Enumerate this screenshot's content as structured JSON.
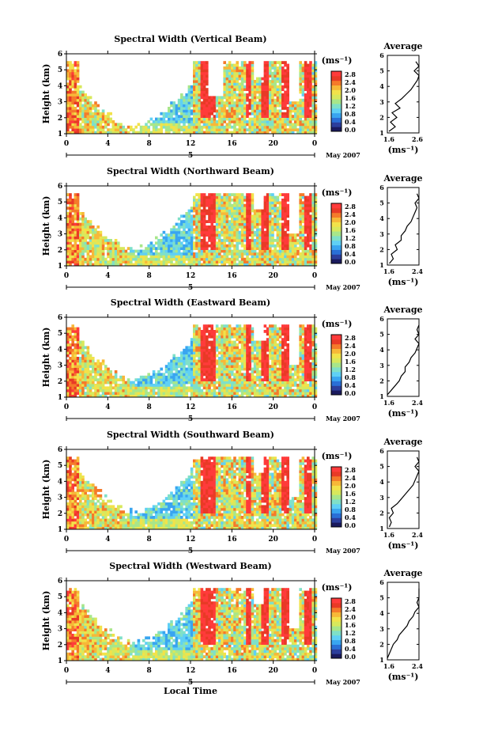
{
  "colorbar": {
    "unit_label": "(ms⁻¹)",
    "colors": [
      "#1a1a5e",
      "#2c3e9c",
      "#2a6fd6",
      "#39a5f0",
      "#5fd0f5",
      "#7fe0c8",
      "#a8e68a",
      "#d8e85c",
      "#f2e24a",
      "#f7b838",
      "#f57a2a",
      "#e83a26",
      "#ff3b3b"
    ]
  },
  "xlabel": "Local Time",
  "date_label": "May 2007",
  "date_tick": "5",
  "panels": [
    {
      "title": "Spectral Width (Vertical Beam)",
      "cbar_ticks": [
        "2.8",
        "2.4",
        "2.0",
        "1.6",
        "1.2",
        "0.8",
        "0.4",
        "0.0"
      ]
    },
    {
      "title": "Spectral Width (Northward Beam)",
      "cbar_ticks": [
        "2.8",
        "2.4",
        "2.0",
        "1.6",
        "1.2",
        "0.8",
        "0.4",
        "0.0"
      ]
    },
    {
      "title": "Spectral Width (Eastward Beam)",
      "cbar_ticks": [
        "2.8",
        "2.4",
        "2.0",
        "1.6",
        "1.2",
        "0.8",
        "0.4",
        "0.0"
      ]
    },
    {
      "title": "Spectral Width (Southward Beam)",
      "cbar_ticks": [
        "2.8",
        "2.4",
        "2.0",
        "1.6",
        "1.2",
        "0.8",
        "0.4",
        "0.0"
      ]
    },
    {
      "title": "Spectral Width (Westward Beam)",
      "cbar_ticks": [
        "2.8",
        "2.4",
        "2.0",
        "1.6",
        "1.2",
        "0.8",
        "0.4",
        "0.0"
      ]
    }
  ],
  "chart_data": [
    {
      "type": "heatmap",
      "title": "Spectral Width (Vertical Beam)",
      "xlabel": "Local Time",
      "ylabel": "Height (km)",
      "xlim": [
        0,
        24
      ],
      "ylim": [
        1,
        6
      ],
      "x_ticks": [
        "0",
        "4",
        "8",
        "12",
        "16",
        "20",
        "0"
      ],
      "y_ticks": [
        "1",
        "2",
        "3",
        "4",
        "5",
        "6"
      ],
      "colorbar_label": "(ms⁻¹)",
      "colorbar_range": [
        0.0,
        2.8
      ]
    },
    {
      "type": "line",
      "title": "Average",
      "xlabel": "(ms⁻¹)",
      "ylim": [
        1,
        6
      ],
      "x_ticks": [
        "1.6",
        "2.6"
      ],
      "y_ticks": [
        "1",
        "2",
        "3",
        "4",
        "5",
        "6"
      ],
      "y": [
        1.1,
        1.4,
        1.7,
        2.0,
        2.3,
        2.6,
        2.9,
        3.2,
        3.5,
        3.8,
        4.1,
        4.4,
        4.7,
        5.0,
        5.3,
        5.6
      ],
      "x": [
        1.65,
        1.85,
        1.7,
        1.9,
        1.75,
        2.0,
        1.85,
        2.05,
        2.2,
        2.35,
        2.45,
        2.55,
        2.6,
        2.45,
        2.6,
        2.5
      ]
    },
    {
      "type": "heatmap",
      "title": "Spectral Width (Northward Beam)",
      "xlabel": "Local Time",
      "ylabel": "Height (km)",
      "xlim": [
        0,
        24
      ],
      "ylim": [
        1,
        6
      ],
      "x_ticks": [
        "0",
        "4",
        "8",
        "12",
        "16",
        "20",
        "0"
      ],
      "y_ticks": [
        "1",
        "2",
        "3",
        "4",
        "5",
        "6"
      ],
      "colorbar_label": "(ms⁻¹)",
      "colorbar_range": [
        0.0,
        2.8
      ]
    },
    {
      "type": "line",
      "title": "Average",
      "xlabel": "(ms⁻¹)",
      "ylim": [
        1,
        6
      ],
      "x_ticks": [
        "1.6",
        "2.4"
      ],
      "y_ticks": [
        "1",
        "2",
        "3",
        "4",
        "5",
        "6"
      ],
      "y": [
        1.1,
        1.4,
        1.7,
        2.0,
        2.3,
        2.6,
        2.9,
        3.2,
        3.5,
        3.8,
        4.1,
        4.4,
        4.7,
        5.0,
        5.3,
        5.6
      ],
      "x": [
        1.65,
        1.75,
        1.7,
        1.85,
        1.8,
        1.95,
        1.95,
        2.05,
        2.1,
        2.2,
        2.25,
        2.3,
        2.35,
        2.3,
        2.4,
        2.35
      ]
    },
    {
      "type": "heatmap",
      "title": "Spectral Width (Eastward Beam)",
      "xlabel": "Local Time",
      "ylabel": "Height (km)",
      "xlim": [
        0,
        24
      ],
      "ylim": [
        1,
        6
      ],
      "x_ticks": [
        "0",
        "4",
        "8",
        "12",
        "16",
        "20",
        "0"
      ],
      "y_ticks": [
        "1",
        "2",
        "3",
        "4",
        "5",
        "6"
      ],
      "colorbar_label": "(ms⁻¹)",
      "colorbar_range": [
        0.0,
        2.8
      ]
    },
    {
      "type": "line",
      "title": "Average",
      "xlabel": "(ms⁻¹)",
      "ylim": [
        1,
        6
      ],
      "x_ticks": [
        "1.6",
        "2.4"
      ],
      "y_ticks": [
        "1",
        "2",
        "3",
        "4",
        "5",
        "6"
      ],
      "y": [
        1.1,
        1.4,
        1.7,
        2.0,
        2.3,
        2.6,
        2.9,
        3.2,
        3.5,
        3.8,
        4.1,
        4.4,
        4.7,
        5.0,
        5.3,
        5.6
      ],
      "x": [
        1.6,
        1.7,
        1.8,
        1.9,
        1.95,
        2.05,
        2.05,
        2.15,
        2.2,
        2.3,
        2.35,
        2.45,
        2.3,
        2.45,
        2.35,
        2.45
      ]
    },
    {
      "type": "heatmap",
      "title": "Spectral Width (Southward Beam)",
      "xlabel": "Local Time",
      "ylabel": "Height (km)",
      "xlim": [
        0,
        24
      ],
      "ylim": [
        1,
        6
      ],
      "x_ticks": [
        "0",
        "4",
        "8",
        "12",
        "16",
        "20",
        "0"
      ],
      "y_ticks": [
        "1",
        "2",
        "3",
        "4",
        "5",
        "6"
      ],
      "colorbar_label": "(ms⁻¹)",
      "colorbar_range": [
        0.0,
        2.8
      ]
    },
    {
      "type": "line",
      "title": "Average",
      "xlabel": "(ms⁻¹)",
      "ylim": [
        1,
        6
      ],
      "x_ticks": [
        "1.6",
        "2.4"
      ],
      "y_ticks": [
        "1",
        "2",
        "3",
        "4",
        "5",
        "6"
      ],
      "y": [
        1.1,
        1.4,
        1.7,
        2.0,
        2.3,
        2.6,
        2.9,
        3.2,
        3.5,
        3.8,
        4.1,
        4.4,
        4.7,
        5.0,
        5.3,
        5.6
      ],
      "x": [
        1.65,
        1.7,
        1.65,
        1.75,
        1.7,
        1.85,
        1.95,
        2.05,
        2.15,
        2.25,
        2.3,
        2.35,
        2.4,
        2.3,
        2.45,
        2.35
      ]
    },
    {
      "type": "heatmap",
      "title": "Spectral Width (Westward Beam)",
      "xlabel": "Local Time",
      "ylabel": "Height (km)",
      "xlim": [
        0,
        24
      ],
      "ylim": [
        1,
        6
      ],
      "x_ticks": [
        "0",
        "4",
        "8",
        "12",
        "16",
        "20",
        "0"
      ],
      "y_ticks": [
        "1",
        "2",
        "3",
        "4",
        "5",
        "6"
      ],
      "colorbar_label": "(ms⁻¹)",
      "colorbar_range": [
        0.0,
        2.8
      ]
    },
    {
      "type": "line",
      "title": "Average",
      "xlabel": "(ms⁻¹)",
      "ylim": [
        1,
        6
      ],
      "x_ticks": [
        "1.6",
        "2.4"
      ],
      "y_ticks": [
        "1",
        "2",
        "3",
        "4",
        "5",
        "6"
      ],
      "y": [
        1.1,
        1.4,
        1.7,
        2.0,
        2.3,
        2.6,
        2.9,
        3.2,
        3.5,
        3.8,
        4.1,
        4.4,
        4.7,
        5.0,
        5.3,
        5.6
      ],
      "x": [
        1.6,
        1.65,
        1.7,
        1.75,
        1.85,
        1.9,
        2.0,
        2.1,
        2.15,
        2.25,
        2.3,
        2.4,
        2.35,
        2.45,
        2.4,
        2.45
      ]
    }
  ]
}
